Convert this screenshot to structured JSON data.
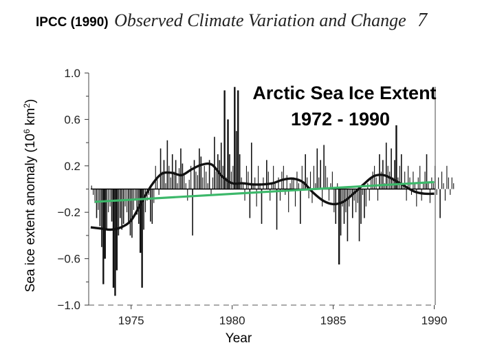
{
  "header": {
    "source": "IPCC (1990)",
    "title": "Observed Climate Variation and Change",
    "page": "7"
  },
  "chart_data": {
    "type": "bar",
    "title_line1": "Arctic Sea Ice Extent",
    "title_line2": "1972 - 1990",
    "xlabel": "Year",
    "ylabel": "Sea ice extent anomaly (10",
    "ylabel_sup": "6",
    "ylabel_tail": " km",
    "ylabel_sup2": "2",
    "ylabel_end": ")",
    "xlim": [
      1972.9,
      1990.05
    ],
    "ylim": [
      -1.0,
      1.0
    ],
    "xticks": [
      1975,
      1980,
      1985,
      1990
    ],
    "xtick_labels": [
      "1975",
      "1980",
      "1985",
      "1990"
    ],
    "yticks": [
      1.0,
      0.6,
      0.2,
      -0.2,
      -0.6,
      -1.0
    ],
    "ytick_labels": [
      "1.0",
      "0.6",
      "0.2",
      "−0.2",
      "−0.6",
      "−1.0"
    ],
    "monthly_anomaly": {
      "start_year": 1973.0,
      "step": 0.0833333,
      "values": [
        0.03,
        -0.05,
        -0.12,
        -0.25,
        -0.18,
        -0.32,
        -0.5,
        -0.82,
        -0.6,
        -0.35,
        -0.2,
        -0.15,
        -0.28,
        -0.85,
        -0.92,
        -0.7,
        -0.4,
        -0.25,
        -0.35,
        -0.3,
        -0.15,
        -0.2,
        -0.3,
        -0.4,
        -0.42,
        -0.18,
        -0.1,
        -0.22,
        -0.3,
        -0.55,
        -0.85,
        -0.35,
        -0.2,
        -0.1,
        -0.05,
        -0.28,
        -0.3,
        -0.12,
        0.2,
        0.1,
        -0.05,
        0.35,
        0.15,
        0.25,
        0.05,
        0.42,
        0.2,
        0.1,
        0.3,
        0.15,
        0.25,
        0.05,
        0.18,
        0.35,
        0.22,
        0.12,
        0.05,
        -0.1,
        0.08,
        0.2,
        -0.4,
        0.25,
        0.15,
        0.12,
        0.35,
        0.28,
        0.1,
        0.2,
        0.15,
        0.05,
        0.25,
        -0.05,
        0.1,
        0.45,
        0.15,
        0.3,
        0.25,
        0.4,
        0.2,
        0.85,
        0.1,
        0.6,
        0.3,
        0.15,
        0.2,
        0.88,
        0.5,
        0.85,
        0.3,
        0.1,
        0.05,
        -0.1,
        0.2,
        0.15,
        -0.25,
        0.4,
        0.05,
        0.1,
        -0.15,
        0.2,
        0.05,
        -0.3,
        0.1,
        0.0,
        0.25,
        0.15,
        -0.1,
        0.05,
        0.2,
        0.05,
        -0.35,
        0.1,
        -0.1,
        0.15,
        0.2,
        -0.05,
        0.12,
        -0.2,
        0.05,
        0.1,
        0.1,
        -0.15,
        0.15,
        0.05,
        -0.3,
        0.2,
        0.05,
        0.3,
        0.1,
        -0.08,
        0.15,
        -0.12,
        0.2,
        0.05,
        0.35,
        0.1,
        0.25,
        -0.15,
        0.38,
        0.2,
        0.1,
        -0.1,
        0.05,
        0.15,
        -0.2,
        -0.3,
        0.05,
        -0.65,
        -0.4,
        -0.15,
        -0.3,
        -0.2,
        -0.45,
        -0.15,
        -0.05,
        -0.25,
        -0.1,
        -0.2,
        -0.12,
        -0.45,
        -0.3,
        -0.05,
        -0.25,
        -0.15,
        0.05,
        -0.1,
        0.1,
        0.15,
        0.2,
        0.1,
        -0.1,
        0.3,
        0.15,
        0.25,
        0.05,
        0.4,
        0.2,
        0.15,
        0.35,
        0.1,
        0.25,
        0.55,
        0.1,
        0.2,
        0.3,
        0.05,
        0.15,
        -0.1,
        0.2,
        0.1,
        -0.05,
        0.15,
        0.05,
        -0.15,
        0.1,
        0.2,
        -0.1,
        0.05,
        0.15,
        0.3,
        0.05,
        -0.12,
        0.1,
        0.05,
        0.2,
        -0.05,
        0.1,
        -0.25,
        0.15,
        0.05,
        -0.1,
        0.2,
        0.1,
        -0.05,
        0.1,
        0.05
      ]
    },
    "smoothed": {
      "x": [
        1973.0,
        1973.5,
        1974.0,
        1974.5,
        1975.0,
        1975.5,
        1976.0,
        1976.5,
        1977.0,
        1977.5,
        1978.0,
        1978.5,
        1979.0,
        1979.5,
        1980.0,
        1980.5,
        1981.0,
        1981.5,
        1982.0,
        1982.5,
        1983.0,
        1983.5,
        1984.0,
        1984.5,
        1985.0,
        1985.5,
        1986.0,
        1986.5,
        1987.0,
        1987.5,
        1988.0,
        1988.5,
        1989.0,
        1989.5,
        1990.0
      ],
      "y": [
        -0.33,
        -0.34,
        -0.35,
        -0.33,
        -0.27,
        -0.12,
        0.03,
        0.13,
        0.14,
        0.12,
        0.17,
        0.21,
        0.21,
        0.11,
        0.05,
        0.05,
        0.04,
        0.04,
        0.05,
        0.08,
        0.09,
        0.06,
        -0.03,
        -0.1,
        -0.13,
        -0.11,
        -0.04,
        0.04,
        0.11,
        0.12,
        0.08,
        0.03,
        -0.02,
        -0.04,
        -0.04
      ]
    },
    "trend": {
      "x": [
        1973.2,
        1990.0
      ],
      "y": [
        -0.11,
        0.06
      ],
      "color": "#3cb86a"
    }
  }
}
